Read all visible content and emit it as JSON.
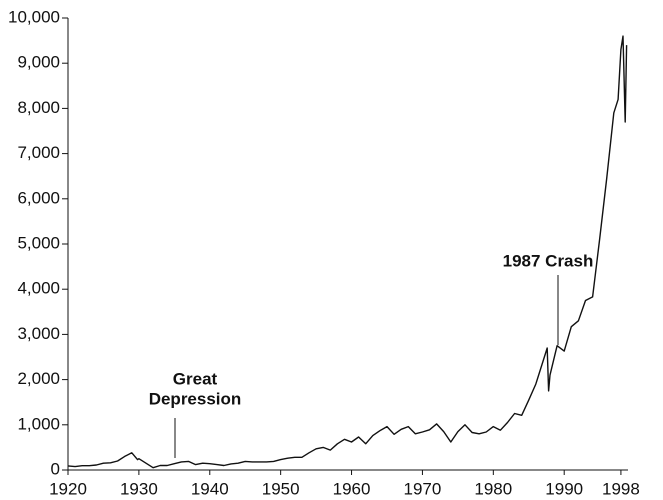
{
  "chart_data": {
    "type": "line",
    "color": "#111111",
    "annotations": [
      [
        "Great",
        "Depression"
      ],
      [
        "1987 Crash"
      ]
    ],
    "x": [
      1920,
      1921,
      1922,
      1923,
      1924,
      1925,
      1926,
      1927,
      1928,
      1929,
      1929.8,
      1930,
      1931,
      1932,
      1933,
      1934,
      1935,
      1936,
      1937,
      1938,
      1939,
      1940,
      1941,
      1942,
      1943,
      1944,
      1945,
      1946,
      1947,
      1948,
      1949,
      1950,
      1951,
      1952,
      1953,
      1954,
      1955,
      1956,
      1957,
      1958,
      1959,
      1960,
      1961,
      1962,
      1963,
      1964,
      1965,
      1966,
      1967,
      1968,
      1969,
      1970,
      1971,
      1972,
      1973,
      1974,
      1975,
      1976,
      1977,
      1978,
      1979,
      1980,
      1981,
      1982,
      1983,
      1984,
      1985,
      1986,
      1987.6,
      1987.8,
      1988,
      1989,
      1990,
      1991,
      1992,
      1993,
      1994,
      1995,
      1996,
      1997,
      1997.6,
      1998,
      1998.3,
      1998.6,
      1998.8
    ],
    "values": [
      90,
      75,
      95,
      95,
      110,
      150,
      160,
      200,
      300,
      380,
      230,
      250,
      150,
      50,
      100,
      100,
      140,
      180,
      190,
      120,
      150,
      140,
      120,
      100,
      135,
      150,
      190,
      180,
      180,
      180,
      190,
      230,
      260,
      280,
      280,
      380,
      470,
      500,
      440,
      580,
      680,
      620,
      730,
      580,
      760,
      870,
      960,
      790,
      900,
      960,
      800,
      840,
      890,
      1020,
      850,
      620,
      850,
      1000,
      830,
      800,
      840,
      960,
      880,
      1050,
      1250,
      1210,
      1550,
      1900,
      2700,
      1750,
      2100,
      2750,
      2630,
      3170,
      3300,
      3750,
      3830,
      5100,
      6450,
      7900,
      8200,
      9300,
      9600,
      7700,
      9400
    ],
    "xlim": [
      1920,
      1999
    ],
    "xticks": [
      1920,
      1930,
      1940,
      1950,
      1960,
      1970,
      1980,
      1990,
      1998
    ],
    "ylim": [
      0,
      10000
    ],
    "yticks": [
      0,
      {
        "value": 1000,
        "label": "1,000"
      },
      {
        "value": 2000,
        "label": "2,000"
      },
      {
        "value": 3000,
        "label": "3,000"
      },
      {
        "value": 4000,
        "label": "4,000"
      },
      {
        "value": 5000,
        "label": "5,000"
      },
      {
        "value": 6000,
        "label": "6,000"
      },
      {
        "value": 7000,
        "label": "7,000"
      },
      {
        "value": 8000,
        "label": "8,000"
      },
      {
        "value": 9000,
        "label": "9,000"
      },
      {
        "value": 10000,
        "label": "10,000"
      }
    ]
  }
}
